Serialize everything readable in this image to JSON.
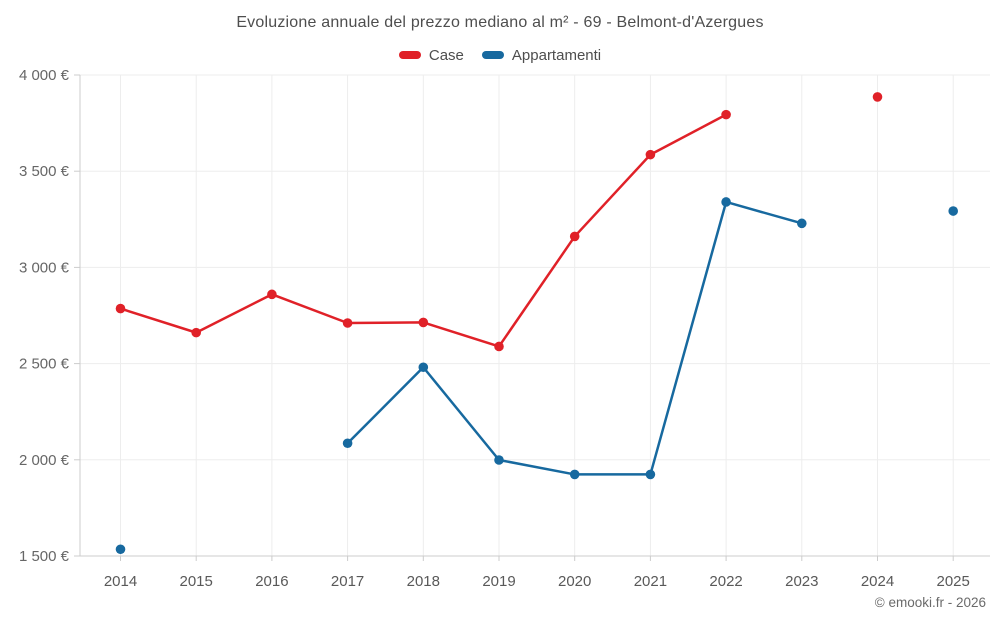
{
  "title": "Evoluzione annuale del prezzo mediano al m² - 69 - Belmont-d'Azergues",
  "legend": [
    {
      "label": "Case",
      "color": "#e02128"
    },
    {
      "label": "Appartamenti",
      "color": "#17699f"
    }
  ],
  "footer": "© emooki.fr - 2026",
  "colors": {
    "grid": "#ededed",
    "axis": "#cccccc",
    "tick_text": "#666666"
  },
  "chart_data": {
    "type": "line",
    "title": "Evoluzione annuale del prezzo mediano al m² - 69 - Belmont-d'Azergues",
    "categories": [
      "2014",
      "2015",
      "2016",
      "2017",
      "2018",
      "2019",
      "2020",
      "2021",
      "2022",
      "2023",
      "2024",
      "2025"
    ],
    "series": [
      {
        "name": "Case",
        "color": "#e02128",
        "values": [
          2786,
          2661,
          2860,
          2711,
          2714,
          2589,
          3161,
          3586,
          3794,
          null,
          3886,
          null
        ]
      },
      {
        "name": "Appartamenti",
        "color": "#17699f",
        "values": [
          1535,
          null,
          null,
          2086,
          2481,
          1999,
          1924,
          1924,
          3340,
          3229,
          null,
          3293
        ]
      }
    ],
    "xlabel": "",
    "ylabel": "",
    "ylim": [
      1500,
      4000
    ],
    "ytick_step": 500,
    "ytick_labels": [
      "1 500 €",
      "2 000 €",
      "2 500 €",
      "3 000 €",
      "3 500 €",
      "4 000 €"
    ],
    "grid": true,
    "legend_position": "top"
  }
}
